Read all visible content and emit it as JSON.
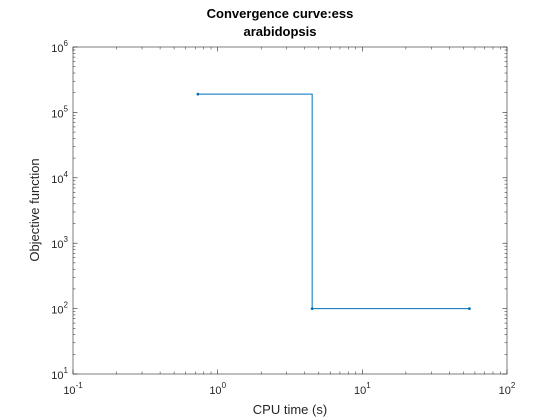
{
  "chart_data": {
    "type": "line",
    "title": [
      "Convergence curve:ess",
      "arabidopsis"
    ],
    "xlabel": "CPU time (s)",
    "ylabel": "Objective function",
    "xscale": "log",
    "yscale": "log",
    "xlim": [
      0.1,
      100
    ],
    "ylim": [
      10,
      1000000
    ],
    "x_ticks": [
      {
        "base": "10",
        "exp": "-1",
        "value": 0.1
      },
      {
        "base": "10",
        "exp": "0",
        "value": 1
      },
      {
        "base": "10",
        "exp": "1",
        "value": 10
      },
      {
        "base": "10",
        "exp": "2",
        "value": 100
      }
    ],
    "y_ticks": [
      {
        "base": "10",
        "exp": "1",
        "value": 10
      },
      {
        "base": "10",
        "exp": "2",
        "value": 100
      },
      {
        "base": "10",
        "exp": "3",
        "value": 1000
      },
      {
        "base": "10",
        "exp": "4",
        "value": 10000
      },
      {
        "base": "10",
        "exp": "5",
        "value": 100000
      },
      {
        "base": "10",
        "exp": "6",
        "value": 1000000
      }
    ],
    "step": "post",
    "grid": false,
    "color": "#0072BD",
    "series": [
      {
        "x": [
          0.73,
          4.5,
          55
        ],
        "y": [
          190000,
          100,
          100
        ]
      }
    ]
  }
}
